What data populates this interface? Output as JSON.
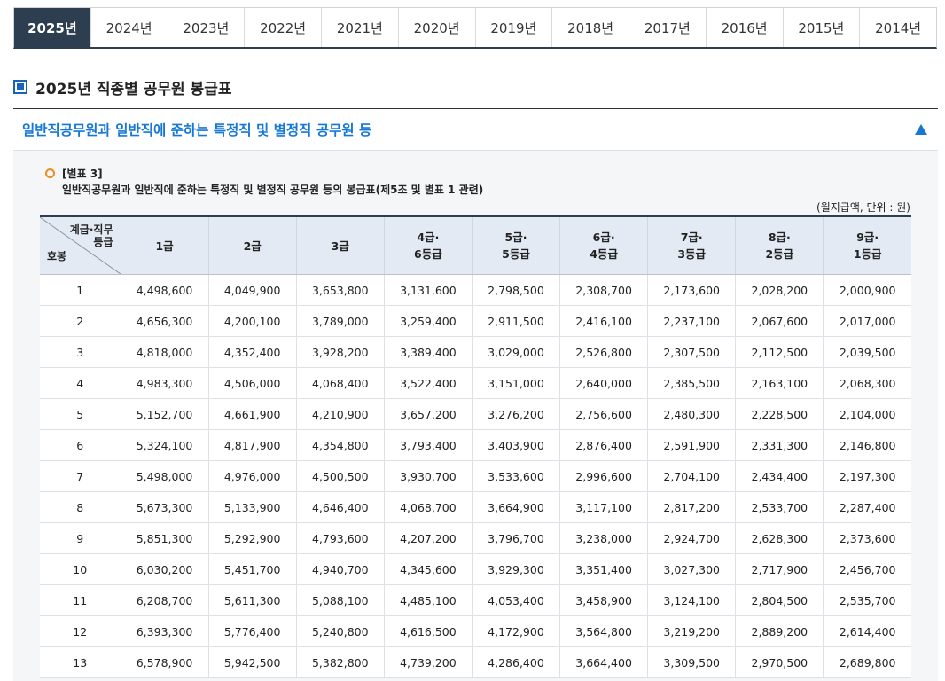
{
  "tabs": [
    {
      "label": "2025년",
      "active": true
    },
    {
      "label": "2024년"
    },
    {
      "label": "2023년"
    },
    {
      "label": "2022년"
    },
    {
      "label": "2021년"
    },
    {
      "label": "2020년"
    },
    {
      "label": "2019년"
    },
    {
      "label": "2018년"
    },
    {
      "label": "2017년"
    },
    {
      "label": "2016년"
    },
    {
      "label": "2015년"
    },
    {
      "label": "2014년"
    }
  ],
  "page_title": "2025년 직종별 공무원 봉급표",
  "accordion": {
    "title": "일반직공무원과 일반직에 준하는 특정직 및 별정직 공무원 등",
    "icon": "triangle-up-icon"
  },
  "note": {
    "label": "[별표 3]",
    "description": "일반직공무원과 일반직에 준하는 특정직 및 별정직 공무원 등의 봉급표(제5조 및 별표 1 관련)",
    "unit": "(월지급액, 단위 : 원)"
  },
  "table": {
    "corner_top_1": "계급·직무",
    "corner_top_2": "등급",
    "corner_bottom": "호봉",
    "columns": [
      [
        "1급",
        ""
      ],
      [
        "2급",
        ""
      ],
      [
        "3급",
        ""
      ],
      [
        "4급·",
        "6등급"
      ],
      [
        "5급·",
        "5등급"
      ],
      [
        "6급·",
        "4등급"
      ],
      [
        "7급·",
        "3등급"
      ],
      [
        "8급·",
        "2등급"
      ],
      [
        "9급·",
        "1등급"
      ]
    ],
    "rows": [
      [
        "1",
        "4,498,600",
        "4,049,900",
        "3,653,800",
        "3,131,600",
        "2,798,500",
        "2,308,700",
        "2,173,600",
        "2,028,200",
        "2,000,900"
      ],
      [
        "2",
        "4,656,300",
        "4,200,100",
        "3,789,000",
        "3,259,400",
        "2,911,500",
        "2,416,100",
        "2,237,100",
        "2,067,600",
        "2,017,000"
      ],
      [
        "3",
        "4,818,000",
        "4,352,400",
        "3,928,200",
        "3,389,400",
        "3,029,000",
        "2,526,800",
        "2,307,500",
        "2,112,500",
        "2,039,500"
      ],
      [
        "4",
        "4,983,300",
        "4,506,000",
        "4,068,400",
        "3,522,400",
        "3,151,000",
        "2,640,000",
        "2,385,500",
        "2,163,100",
        "2,068,300"
      ],
      [
        "5",
        "5,152,700",
        "4,661,900",
        "4,210,900",
        "3,657,200",
        "3,276,200",
        "2,756,600",
        "2,480,300",
        "2,228,500",
        "2,104,000"
      ],
      [
        "6",
        "5,324,100",
        "4,817,900",
        "4,354,800",
        "3,793,400",
        "3,403,900",
        "2,876,400",
        "2,591,900",
        "2,331,300",
        "2,146,800"
      ],
      [
        "7",
        "5,498,000",
        "4,976,000",
        "4,500,500",
        "3,930,700",
        "3,533,600",
        "2,996,600",
        "2,704,100",
        "2,434,400",
        "2,197,300"
      ],
      [
        "8",
        "5,673,300",
        "5,133,900",
        "4,646,400",
        "4,068,700",
        "3,664,900",
        "3,117,100",
        "2,817,200",
        "2,533,700",
        "2,287,400"
      ],
      [
        "9",
        "5,851,300",
        "5,292,900",
        "4,793,600",
        "4,207,200",
        "3,796,700",
        "3,238,000",
        "2,924,700",
        "2,628,300",
        "2,373,600"
      ],
      [
        "10",
        "6,030,200",
        "5,451,700",
        "4,940,700",
        "4,345,600",
        "3,929,300",
        "3,351,400",
        "3,027,300",
        "2,717,900",
        "2,456,700"
      ],
      [
        "11",
        "6,208,700",
        "5,611,300",
        "5,088,100",
        "4,485,100",
        "4,053,400",
        "3,458,900",
        "3,124,100",
        "2,804,500",
        "2,535,700"
      ],
      [
        "12",
        "6,393,300",
        "5,776,400",
        "5,240,800",
        "4,616,500",
        "4,172,900",
        "3,564,800",
        "3,219,200",
        "2,889,200",
        "2,614,400"
      ],
      [
        "13",
        "6,578,900",
        "5,942,500",
        "5,382,800",
        "4,739,200",
        "4,286,400",
        "3,664,400",
        "3,309,500",
        "2,970,500",
        "2,689,800"
      ]
    ]
  }
}
